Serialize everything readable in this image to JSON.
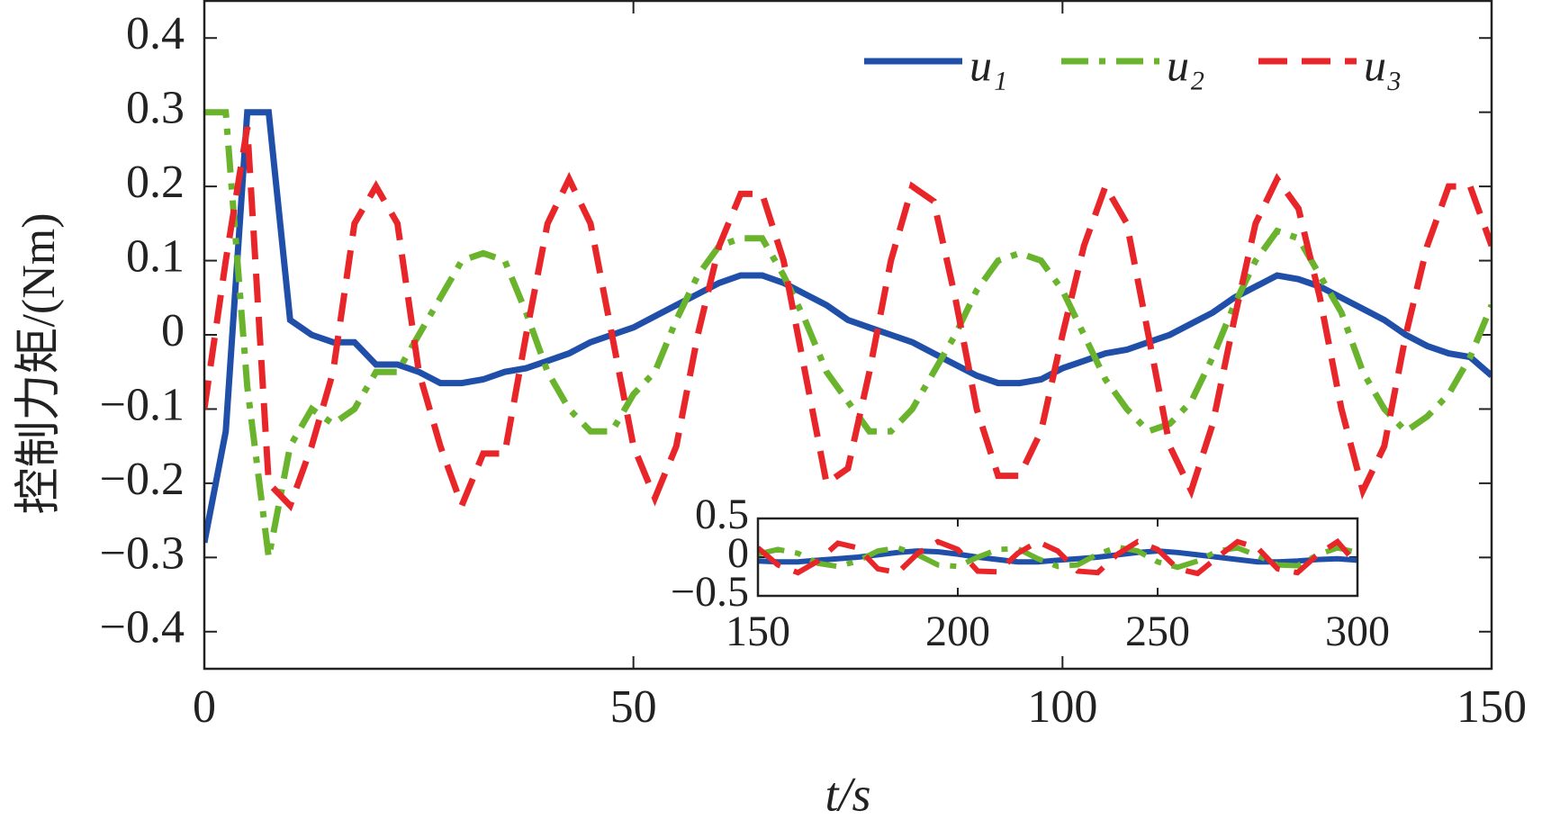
{
  "chart_data": [
    {
      "type": "line",
      "xlabel": "t/s",
      "ylabel": "控制力矩/(Nm)",
      "xlim": [
        0,
        150
      ],
      "ylim": [
        -0.45,
        0.45
      ],
      "xticks": [
        0,
        50,
        100,
        150
      ],
      "yticks": [
        {
          "value": -0.4,
          "label": "−0.4"
        },
        {
          "value": -0.3,
          "label": "−0.3"
        },
        {
          "value": -0.2,
          "label": "−0.2"
        },
        {
          "value": -0.1,
          "label": "−0.1"
        },
        0,
        0.1,
        0.2,
        0.3,
        0.4
      ],
      "legend": "upper right",
      "x": [
        0,
        2.5,
        5,
        7.5,
        10,
        12.5,
        15,
        17.5,
        20,
        22.5,
        25,
        27.5,
        30,
        32.5,
        35,
        37.5,
        40,
        42.5,
        45,
        47.5,
        50,
        52.5,
        55,
        57.5,
        60,
        62.5,
        65,
        67.5,
        70,
        72.5,
        75,
        77.5,
        80,
        82.5,
        85,
        87.5,
        90,
        92.5,
        95,
        97.5,
        100,
        102.5,
        105,
        107.5,
        110,
        112.5,
        115,
        117.5,
        120,
        122.5,
        125,
        127.5,
        130,
        132.5,
        135,
        137.5,
        140,
        142.5,
        145,
        147.5,
        150
      ],
      "series": [
        {
          "name": "u₁",
          "color": "#1f4fa8",
          "style": "solid",
          "values": [
            -0.28,
            -0.13,
            0.3,
            0.3,
            0.02,
            0.0,
            -0.01,
            -0.01,
            -0.04,
            -0.04,
            -0.05,
            -0.065,
            -0.065,
            -0.06,
            -0.05,
            -0.045,
            -0.035,
            -0.025,
            -0.01,
            0.0,
            0.01,
            0.025,
            0.04,
            0.055,
            0.07,
            0.08,
            0.08,
            0.07,
            0.055,
            0.04,
            0.02,
            0.01,
            0.0,
            -0.01,
            -0.025,
            -0.04,
            -0.055,
            -0.065,
            -0.065,
            -0.06,
            -0.045,
            -0.035,
            -0.025,
            -0.02,
            -0.01,
            0.0,
            0.015,
            0.03,
            0.05,
            0.065,
            0.08,
            0.075,
            0.065,
            0.05,
            0.035,
            0.02,
            0.0,
            -0.015,
            -0.025,
            -0.03,
            -0.055
          ]
        },
        {
          "name": "u₂",
          "color": "#6ab42d",
          "style": "dashdot",
          "values": [
            0.3,
            0.3,
            -0.07,
            -0.3,
            -0.15,
            -0.1,
            -0.12,
            -0.1,
            -0.05,
            -0.05,
            0.0,
            0.05,
            0.1,
            0.11,
            0.1,
            0.03,
            -0.05,
            -0.1,
            -0.13,
            -0.13,
            -0.08,
            -0.05,
            0.02,
            0.08,
            0.12,
            0.13,
            0.13,
            0.08,
            0.02,
            -0.05,
            -0.09,
            -0.13,
            -0.13,
            -0.1,
            -0.05,
            0.0,
            0.06,
            0.1,
            0.11,
            0.1,
            0.06,
            0.0,
            -0.06,
            -0.1,
            -0.13,
            -0.12,
            -0.09,
            -0.03,
            0.04,
            0.1,
            0.14,
            0.13,
            0.08,
            0.03,
            -0.05,
            -0.1,
            -0.13,
            -0.11,
            -0.08,
            -0.03,
            0.04
          ]
        },
        {
          "name": "u₃",
          "color": "#e8262a",
          "style": "dashed",
          "values": [
            -0.1,
            0.1,
            0.28,
            -0.2,
            -0.23,
            -0.15,
            -0.05,
            0.15,
            0.2,
            0.15,
            -0.05,
            -0.15,
            -0.23,
            -0.16,
            -0.16,
            0.0,
            0.15,
            0.21,
            0.15,
            0.0,
            -0.15,
            -0.22,
            -0.15,
            0.0,
            0.12,
            0.19,
            0.19,
            0.1,
            -0.05,
            -0.2,
            -0.18,
            -0.05,
            0.1,
            0.2,
            0.18,
            0.05,
            -0.1,
            -0.19,
            -0.19,
            -0.13,
            0.0,
            0.12,
            0.2,
            0.15,
            0.0,
            -0.15,
            -0.21,
            -0.12,
            0.02,
            0.15,
            0.21,
            0.17,
            0.05,
            -0.1,
            -0.21,
            -0.15,
            0.0,
            0.12,
            0.2,
            0.2,
            0.12
          ]
        }
      ]
    },
    {
      "type": "line",
      "xlim": [
        150,
        300
      ],
      "ylim": [
        -0.5,
        0.5
      ],
      "xticks": [
        150,
        200,
        250,
        300
      ],
      "yticks": [
        {
          "value": -0.5,
          "label": "−0.5"
        },
        0,
        0.5
      ],
      "x": [
        150,
        155,
        160,
        165,
        170,
        175,
        180,
        185,
        190,
        195,
        200,
        205,
        210,
        215,
        220,
        225,
        230,
        235,
        240,
        245,
        250,
        255,
        260,
        265,
        270,
        275,
        280,
        285,
        290,
        295,
        300
      ],
      "series": [
        {
          "color": "#1f4fa8",
          "style": "solid",
          "values": [
            -0.05,
            -0.06,
            -0.06,
            -0.04,
            -0.02,
            0.0,
            0.03,
            0.06,
            0.08,
            0.07,
            0.04,
            0.0,
            -0.03,
            -0.06,
            -0.06,
            -0.04,
            -0.02,
            0.0,
            0.03,
            0.06,
            0.08,
            0.06,
            0.03,
            0.0,
            -0.03,
            -0.06,
            -0.06,
            -0.05,
            -0.03,
            -0.02,
            -0.04
          ]
        },
        {
          "color": "#6ab42d",
          "style": "dashdot",
          "values": [
            0.04,
            0.1,
            0.05,
            -0.08,
            -0.12,
            -0.05,
            0.08,
            0.12,
            0.03,
            -0.1,
            -0.12,
            0.0,
            0.1,
            0.11,
            -0.02,
            -0.12,
            -0.1,
            0.04,
            0.13,
            0.08,
            -0.06,
            -0.13,
            -0.05,
            0.08,
            0.12,
            0.02,
            -0.1,
            -0.11,
            0.03,
            0.12,
            0.06
          ]
        },
        {
          "color": "#e8262a",
          "style": "dashed",
          "values": [
            0.12,
            -0.1,
            -0.2,
            -0.05,
            0.18,
            0.12,
            -0.15,
            -0.2,
            0.05,
            0.2,
            0.1,
            -0.18,
            -0.19,
            0.05,
            0.2,
            0.08,
            -0.18,
            -0.2,
            0.04,
            0.2,
            0.1,
            -0.15,
            -0.21,
            0.0,
            0.2,
            0.12,
            -0.15,
            -0.2,
            0.03,
            0.2,
            -0.1
          ]
        }
      ]
    }
  ]
}
